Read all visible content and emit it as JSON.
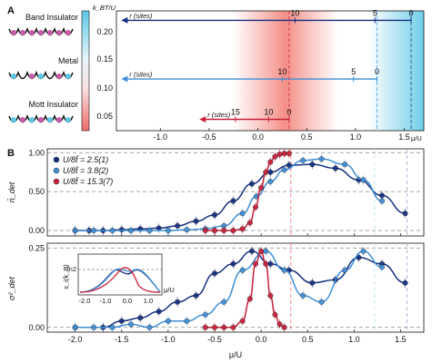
{
  "panels": {
    "a": "A",
    "b": "B"
  },
  "phases": [
    {
      "label": "Band Insulator"
    },
    {
      "label": "Metal"
    },
    {
      "label": "Mott Insulator"
    }
  ],
  "colorbar": {
    "label": "k_BT/U",
    "ticks": [
      "0.20",
      "0.15",
      "0.10",
      "0.05"
    ]
  },
  "colors": {
    "dark": "#142f80",
    "mid": "#3f8fd6",
    "red": "#c8203a",
    "pink": "#f06b6b",
    "cyan": "#5cc8e6"
  },
  "chart_data": [
    {
      "type": "heatmap",
      "xlabel": "μ/U",
      "ylabel": "k_BT/U",
      "xlim": [
        -1.45,
        1.7
      ],
      "ylim": [
        0.03,
        0.22
      ],
      "x_ticks": [
        -1.0,
        -0.5,
        0.0,
        0.5,
        1.0,
        1.5
      ],
      "y_ticks": [
        0.05,
        0.1,
        0.15,
        0.2
      ],
      "trap_arrows": [
        {
          "y": 0.205,
          "x_start": 1.57,
          "x_end": -1.4,
          "label": "r (sites)",
          "tick_labels": [
            {
              "text": "10",
              "x": 0.38
            },
            {
              "text": "5",
              "x": 1.2
            },
            {
              "text": "0",
              "x": 1.57
            }
          ]
        },
        {
          "y": 0.112,
          "x_start": 1.22,
          "x_end": -1.4,
          "label": "r (sites)",
          "tick_labels": [
            {
              "text": "10",
              "x": 0.25
            },
            {
              "text": "5",
              "x": 0.98
            },
            {
              "text": "0",
              "x": 1.22
            }
          ]
        },
        {
          "y": 0.048,
          "x_start": 0.32,
          "x_end": -0.6,
          "label": "r (sites)",
          "tick_labels": [
            {
              "text": "15",
              "x": -0.23
            },
            {
              "text": "10",
              "x": 0.11
            },
            {
              "text": "0",
              "x": 0.32
            }
          ]
        }
      ]
    },
    {
      "type": "scatter",
      "ylabel": "n̄_det",
      "xlim": [
        -2.3,
        1.75
      ],
      "ylim": [
        -0.07,
        1.05
      ],
      "y_ticks": [
        "0.00",
        "0.50",
        "1.00"
      ],
      "series": [
        {
          "name": "U/8t̃ = 2.5(1)",
          "color": "#142f80",
          "x": [
            -2.0,
            -1.85,
            -1.7,
            -1.5,
            -1.3,
            -1.1,
            -0.9,
            -0.7,
            -0.5,
            -0.3,
            -0.1,
            0.1,
            0.3,
            0.55,
            0.8,
            1.05,
            1.3,
            1.55
          ],
          "y": [
            0.0,
            0.0,
            0.0,
            0.01,
            0.02,
            0.03,
            0.06,
            0.12,
            0.2,
            0.38,
            0.6,
            0.75,
            0.84,
            0.85,
            0.8,
            0.65,
            0.45,
            0.22
          ]
        },
        {
          "name": "U/8t̃ = 3.8(2)",
          "color": "#3f8fd6",
          "x": [
            -2.0,
            -1.8,
            -1.6,
            -1.4,
            -1.2,
            -1.0,
            -0.8,
            -0.6,
            -0.4,
            -0.2,
            -0.05,
            0.1,
            0.25,
            0.45,
            0.65,
            0.9,
            1.1,
            1.3
          ],
          "y": [
            0.0,
            0.0,
            0.0,
            0.0,
            0.0,
            0.0,
            0.01,
            0.02,
            0.06,
            0.22,
            0.44,
            0.63,
            0.78,
            0.9,
            0.92,
            0.85,
            0.65,
            0.38
          ]
        },
        {
          "name": "U/8t̃ = 15.3(7)",
          "color": "#c8203a",
          "x": [
            -0.6,
            -0.5,
            -0.4,
            -0.3,
            -0.2,
            -0.12,
            -0.06,
            0.0,
            0.05,
            0.1,
            0.15,
            0.2,
            0.25,
            0.3
          ],
          "y": [
            0.0,
            0.0,
            0.0,
            0.0,
            0.02,
            0.1,
            0.3,
            0.55,
            0.75,
            0.88,
            0.95,
            0.98,
            0.99,
            0.99
          ]
        }
      ]
    },
    {
      "type": "scatter",
      "xlabel": "μ/U",
      "ylabel": "σ²_det",
      "xlim": [
        -2.3,
        1.75
      ],
      "ylim": [
        -0.015,
        0.265
      ],
      "x_ticks": [
        "-2.0",
        "-1.5",
        "-1.0",
        "-0.5",
        "0.0",
        "0.5",
        "1.0",
        "1.5"
      ],
      "y_ticks": [
        "0.00",
        "0.25"
      ],
      "series": [
        {
          "name": "U/8t̃ = 2.5(1)",
          "color": "#142f80",
          "x": [
            -2.0,
            -1.7,
            -1.5,
            -1.3,
            -1.1,
            -0.9,
            -0.7,
            -0.5,
            -0.3,
            -0.1,
            0.1,
            0.3,
            0.55,
            0.8,
            1.05,
            1.3,
            1.55
          ],
          "y": [
            0.0,
            0.0,
            0.02,
            0.03,
            0.05,
            0.08,
            0.1,
            0.17,
            0.2,
            0.24,
            0.2,
            0.18,
            0.14,
            0.15,
            0.22,
            0.2,
            0.14
          ]
        },
        {
          "name": "U/8t̃ = 3.8(2)",
          "color": "#3f8fd6",
          "x": [
            -2.0,
            -1.8,
            -1.6,
            -1.4,
            -1.2,
            -1.0,
            -0.8,
            -0.6,
            -0.4,
            -0.2,
            0.05,
            0.25,
            0.45,
            0.65,
            0.9,
            1.1,
            1.3
          ],
          "y": [
            0.0,
            0.0,
            0.0,
            0.01,
            0.0,
            0.02,
            0.02,
            0.04,
            0.08,
            0.18,
            0.24,
            0.18,
            0.1,
            0.08,
            0.18,
            0.24,
            0.19
          ]
        },
        {
          "name": "U/8t̃ = 15.3(7)",
          "color": "#c8203a",
          "x": [
            -0.6,
            -0.5,
            -0.4,
            -0.3,
            -0.2,
            -0.12,
            -0.06,
            0.0,
            0.05,
            0.1,
            0.15,
            0.2,
            0.25
          ],
          "y": [
            0.0,
            0.0,
            0.0,
            0.0,
            0.02,
            0.09,
            0.2,
            0.24,
            0.2,
            0.1,
            0.04,
            0.01,
            0.0
          ]
        }
      ],
      "inset": {
        "ylabel": "s_i(k_B)",
        "xlabel": "μ/U",
        "x_ticks": [
          "-2.0",
          "-1.0",
          "0.0",
          "1.0"
        ],
        "y_tick": "ln2"
      }
    }
  ]
}
